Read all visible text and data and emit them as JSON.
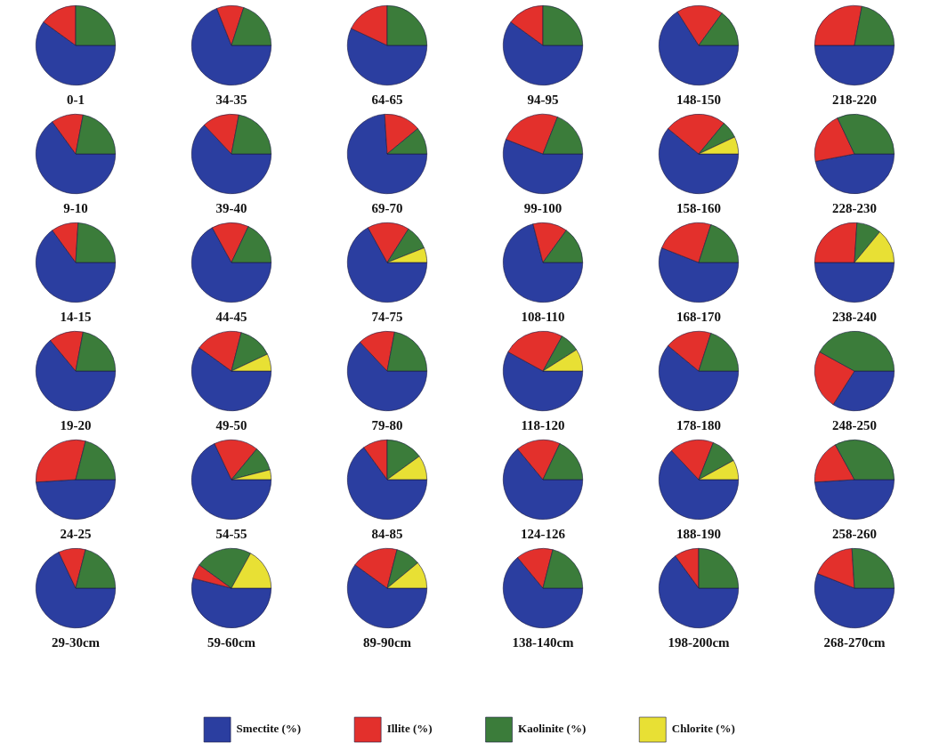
{
  "chart_data": [
    {
      "type": "pie",
      "title": "0-1",
      "categories": [
        "Smectite (%)",
        "Illite (%)",
        "Kaolinite (%)",
        "Chlorite (%)"
      ],
      "values": [
        60,
        15,
        25,
        0
      ],
      "colors": [
        "#2b3ea0",
        "#e3302c",
        "#3b7c3a",
        "#e8e034"
      ],
      "legend": "bottom"
    },
    {
      "type": "pie",
      "title": "34-35",
      "values": [
        69,
        11,
        20,
        0
      ],
      "colors": [
        "#2b3ea0",
        "#e3302c",
        "#3b7c3a",
        "#e8e034"
      ]
    },
    {
      "type": "pie",
      "title": "64-65",
      "values": [
        57,
        18,
        25,
        0
      ],
      "colors": [
        "#2b3ea0",
        "#e3302c",
        "#3b7c3a",
        "#e8e034"
      ]
    },
    {
      "type": "pie",
      "title": "94-95",
      "values": [
        60,
        15,
        25,
        0
      ],
      "colors": [
        "#2b3ea0",
        "#e3302c",
        "#3b7c3a",
        "#e8e034"
      ]
    },
    {
      "type": "pie",
      "title": "148-150",
      "values": [
        66,
        19,
        15,
        0
      ],
      "colors": [
        "#2b3ea0",
        "#e3302c",
        "#3b7c3a",
        "#e8e034"
      ]
    },
    {
      "type": "pie",
      "title": "218-220",
      "values": [
        50,
        28,
        22,
        0
      ],
      "colors": [
        "#2b3ea0",
        "#e3302c",
        "#3b7c3a",
        "#e8e034"
      ]
    },
    {
      "type": "pie",
      "title": "9-10",
      "values": [
        65,
        13,
        22,
        0
      ],
      "colors": [
        "#2b3ea0",
        "#e3302c",
        "#3b7c3a",
        "#e8e034"
      ]
    },
    {
      "type": "pie",
      "title": "39-40",
      "values": [
        63,
        15,
        22,
        0
      ],
      "colors": [
        "#2b3ea0",
        "#e3302c",
        "#3b7c3a",
        "#e8e034"
      ]
    },
    {
      "type": "pie",
      "title": "69-70",
      "values": [
        74,
        15,
        11,
        0
      ],
      "colors": [
        "#2b3ea0",
        "#e3302c",
        "#3b7c3a",
        "#e8e034"
      ]
    },
    {
      "type": "pie",
      "title": "99-100",
      "values": [
        56,
        25,
        19,
        0
      ],
      "colors": [
        "#2b3ea0",
        "#e3302c",
        "#3b7c3a",
        "#e8e034"
      ]
    },
    {
      "type": "pie",
      "title": "158-160",
      "values": [
        61,
        25,
        7,
        7
      ],
      "colors": [
        "#2b3ea0",
        "#e3302c",
        "#3b7c3a",
        "#e8e034"
      ]
    },
    {
      "type": "pie",
      "title": "228-230",
      "values": [
        47,
        21,
        32,
        0
      ],
      "colors": [
        "#2b3ea0",
        "#e3302c",
        "#3b7c3a",
        "#e8e034"
      ]
    },
    {
      "type": "pie",
      "title": "14-15",
      "values": [
        65,
        11,
        24,
        0
      ],
      "colors": [
        "#2b3ea0",
        "#e3302c",
        "#3b7c3a",
        "#e8e034"
      ]
    },
    {
      "type": "pie",
      "title": "44-45",
      "values": [
        67,
        15,
        18,
        0
      ],
      "colors": [
        "#2b3ea0",
        "#e3302c",
        "#3b7c3a",
        "#e8e034"
      ]
    },
    {
      "type": "pie",
      "title": "74-75",
      "values": [
        67,
        17,
        10,
        6
      ],
      "colors": [
        "#2b3ea0",
        "#e3302c",
        "#3b7c3a",
        "#e8e034"
      ]
    },
    {
      "type": "pie",
      "title": "108-110",
      "values": [
        71,
        14,
        15,
        0
      ],
      "colors": [
        "#2b3ea0",
        "#e3302c",
        "#3b7c3a",
        "#e8e034"
      ]
    },
    {
      "type": "pie",
      "title": "168-170",
      "values": [
        56,
        24,
        20,
        0
      ],
      "colors": [
        "#2b3ea0",
        "#e3302c",
        "#3b7c3a",
        "#e8e034"
      ]
    },
    {
      "type": "pie",
      "title": "238-240",
      "values": [
        50,
        26,
        10,
        14
      ],
      "colors": [
        "#2b3ea0",
        "#e3302c",
        "#3b7c3a",
        "#e8e034"
      ]
    },
    {
      "type": "pie",
      "title": "19-20",
      "values": [
        64,
        14,
        22,
        0
      ],
      "colors": [
        "#2b3ea0",
        "#e3302c",
        "#3b7c3a",
        "#e8e034"
      ]
    },
    {
      "type": "pie",
      "title": "49-50",
      "values": [
        60,
        19,
        14,
        7
      ],
      "colors": [
        "#2b3ea0",
        "#e3302c",
        "#3b7c3a",
        "#e8e034"
      ]
    },
    {
      "type": "pie",
      "title": "79-80",
      "values": [
        63,
        15,
        22,
        0
      ],
      "colors": [
        "#2b3ea0",
        "#e3302c",
        "#3b7c3a",
        "#e8e034"
      ]
    },
    {
      "type": "pie",
      "title": "118-120",
      "values": [
        58,
        25,
        8,
        9
      ],
      "colors": [
        "#2b3ea0",
        "#e3302c",
        "#3b7c3a",
        "#e8e034"
      ]
    },
    {
      "type": "pie",
      "title": "178-180",
      "values": [
        61,
        19,
        20,
        0
      ],
      "colors": [
        "#2b3ea0",
        "#e3302c",
        "#3b7c3a",
        "#e8e034"
      ]
    },
    {
      "type": "pie",
      "title": "248-250",
      "values": [
        34,
        24,
        42,
        0
      ],
      "colors": [
        "#2b3ea0",
        "#e3302c",
        "#3b7c3a",
        "#e8e034"
      ]
    },
    {
      "type": "pie",
      "title": "24-25",
      "values": [
        49,
        30,
        21,
        0
      ],
      "colors": [
        "#2b3ea0",
        "#e3302c",
        "#3b7c3a",
        "#e8e034"
      ]
    },
    {
      "type": "pie",
      "title": "54-55",
      "values": [
        68,
        18,
        10,
        4
      ],
      "colors": [
        "#2b3ea0",
        "#e3302c",
        "#3b7c3a",
        "#e8e034"
      ]
    },
    {
      "type": "pie",
      "title": "84-85",
      "values": [
        65,
        10,
        15,
        10
      ],
      "colors": [
        "#2b3ea0",
        "#e3302c",
        "#3b7c3a",
        "#e8e034"
      ]
    },
    {
      "type": "pie",
      "title": "124-126",
      "values": [
        64,
        18,
        18,
        0
      ],
      "colors": [
        "#2b3ea0",
        "#e3302c",
        "#3b7c3a",
        "#e8e034"
      ]
    },
    {
      "type": "pie",
      "title": "188-190",
      "values": [
        63,
        18,
        11,
        8
      ],
      "colors": [
        "#2b3ea0",
        "#e3302c",
        "#3b7c3a",
        "#e8e034"
      ]
    },
    {
      "type": "pie",
      "title": "258-260",
      "values": [
        49,
        18,
        33,
        0
      ],
      "colors": [
        "#2b3ea0",
        "#e3302c",
        "#3b7c3a",
        "#e8e034"
      ]
    },
    {
      "type": "pie",
      "title": "29-30cm",
      "values": [
        68,
        11,
        21,
        0
      ],
      "colors": [
        "#2b3ea0",
        "#e3302c",
        "#3b7c3a",
        "#e8e034"
      ]
    },
    {
      "type": "pie",
      "title": "59-60cm",
      "values": [
        54,
        6,
        23,
        17
      ],
      "colors": [
        "#2b3ea0",
        "#e3302c",
        "#3b7c3a",
        "#e8e034"
      ]
    },
    {
      "type": "pie",
      "title": "89-90cm",
      "values": [
        60,
        19,
        10,
        11
      ],
      "colors": [
        "#2b3ea0",
        "#e3302c",
        "#3b7c3a",
        "#e8e034"
      ]
    },
    {
      "type": "pie",
      "title": "138-140cm",
      "values": [
        64,
        15,
        21,
        0
      ],
      "colors": [
        "#2b3ea0",
        "#e3302c",
        "#3b7c3a",
        "#e8e034"
      ]
    },
    {
      "type": "pie",
      "title": "198-200cm",
      "values": [
        65,
        10,
        25,
        0
      ],
      "colors": [
        "#2b3ea0",
        "#e3302c",
        "#3b7c3a",
        "#e8e034"
      ]
    },
    {
      "type": "pie",
      "title": "268-270cm",
      "values": [
        56,
        18,
        26,
        0
      ],
      "colors": [
        "#2b3ea0",
        "#e3302c",
        "#3b7c3a",
        "#e8e034"
      ]
    }
  ]
}
